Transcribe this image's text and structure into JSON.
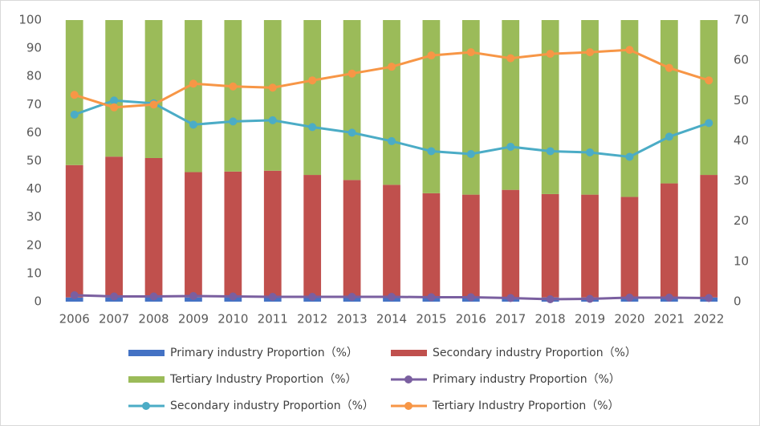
{
  "chart_data": {
    "type": "bar",
    "categories": [
      "2006",
      "2007",
      "2008",
      "2009",
      "2010",
      "2011",
      "2012",
      "2013",
      "2014",
      "2015",
      "2016",
      "2017",
      "2018",
      "2019",
      "2020",
      "2021",
      "2022"
    ],
    "series": [
      {
        "name": "Primary industry Proportion（%）",
        "type": "bar",
        "color": "#4472c4",
        "values": [
          1.5,
          1.5,
          1.5,
          1.5,
          1.5,
          1.5,
          1.5,
          1.5,
          1.5,
          1.5,
          1.5,
          1.5,
          1.5,
          1.5,
          1.5,
          1.5,
          1.5
        ]
      },
      {
        "name": "Secondary industry Proportion（%）",
        "type": "bar",
        "color": "#c0504d",
        "values": [
          47,
          50,
          49.5,
          44.5,
          44.7,
          45,
          43.5,
          41.7,
          40,
          37,
          36.5,
          38.2,
          36.7,
          36.5,
          35.7,
          40.5,
          43.5
        ]
      },
      {
        "name": "Tertiary Industry Proportion（%）",
        "type": "bar",
        "color": "#9bbb59",
        "values": [
          51.5,
          48.5,
          49,
          54,
          53.8,
          53.5,
          55,
          56.8,
          58.5,
          61.5,
          62,
          60.3,
          61.8,
          62,
          62.8,
          58,
          55
        ]
      },
      {
        "name": "Primary industry Proportion（%）",
        "type": "line",
        "axis": "y2",
        "color": "#7a5fa0",
        "values": [
          1.6,
          1.3,
          1.3,
          1.4,
          1.3,
          1.2,
          1.2,
          1.2,
          1.2,
          1.1,
          1.1,
          0.9,
          0.6,
          0.7,
          1.0,
          1.0,
          0.9
        ]
      },
      {
        "name": "Secondary industry Proportion（%）",
        "type": "line",
        "axis": "y2",
        "color": "#4bacc6",
        "values": [
          46.5,
          50,
          49.3,
          44,
          44.8,
          45.1,
          43.4,
          42,
          39.9,
          37.4,
          36.7,
          38.5,
          37.4,
          37.1,
          36,
          41,
          44.4
        ]
      },
      {
        "name": "Tertiary Industry Proportion（%）",
        "type": "line",
        "axis": "y2",
        "color": "#f79646",
        "values": [
          51.4,
          48.3,
          49,
          54.2,
          53.5,
          53.2,
          55,
          56.7,
          58.4,
          61.2,
          62,
          60.5,
          61.6,
          62,
          62.6,
          58.1,
          55
        ]
      }
    ],
    "ylim": [
      0,
      100
    ],
    "yticks": [
      0,
      10,
      20,
      30,
      40,
      50,
      60,
      70,
      80,
      90,
      100
    ],
    "y2lim": [
      0,
      70
    ],
    "y2ticks": [
      0,
      10,
      20,
      30,
      40,
      50,
      60,
      70
    ],
    "legend": "bottom"
  }
}
